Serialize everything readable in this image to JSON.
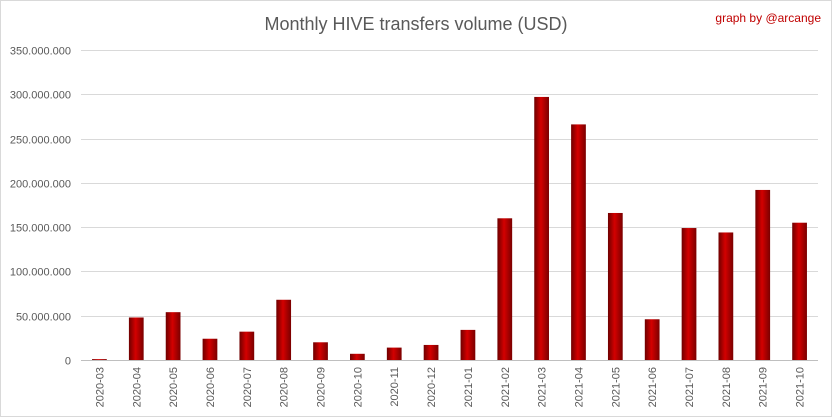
{
  "chart_data": {
    "type": "bar",
    "title": "Monthly HIVE transfers volume (USD)",
    "credit": "graph by @arcange",
    "xlabel": "",
    "ylabel": "",
    "ylim": [
      0,
      350000000
    ],
    "yticks": [
      0,
      50000000,
      100000000,
      150000000,
      200000000,
      250000000,
      300000000,
      350000000
    ],
    "ytick_labels": [
      "0",
      "50.000.000",
      "100.000.000",
      "150.000.000",
      "200.000.000",
      "250.000.000",
      "300.000.000",
      "350.000.000"
    ],
    "grid": true,
    "legend": "none",
    "categories": [
      "2020-03",
      "2020-04",
      "2020-05",
      "2020-06",
      "2020-07",
      "2020-08",
      "2020-09",
      "2020-10",
      "2020-11",
      "2020-12",
      "2021-01",
      "2021-02",
      "2021-03",
      "2021-04",
      "2021-05",
      "2021-06",
      "2021-07",
      "2021-08",
      "2021-09",
      "2021-10"
    ],
    "values": [
      1000000,
      48000000,
      54000000,
      24000000,
      32000000,
      68000000,
      20000000,
      7000000,
      14000000,
      17000000,
      34000000,
      160000000,
      297000000,
      266000000,
      166000000,
      46000000,
      149000000,
      144000000,
      192000000,
      155000000
    ],
    "colors": {
      "bar_dark": "#8b0000",
      "bar_light": "#d40000",
      "grid": "#d9d9d9",
      "axis": "#bfbfbf"
    }
  }
}
